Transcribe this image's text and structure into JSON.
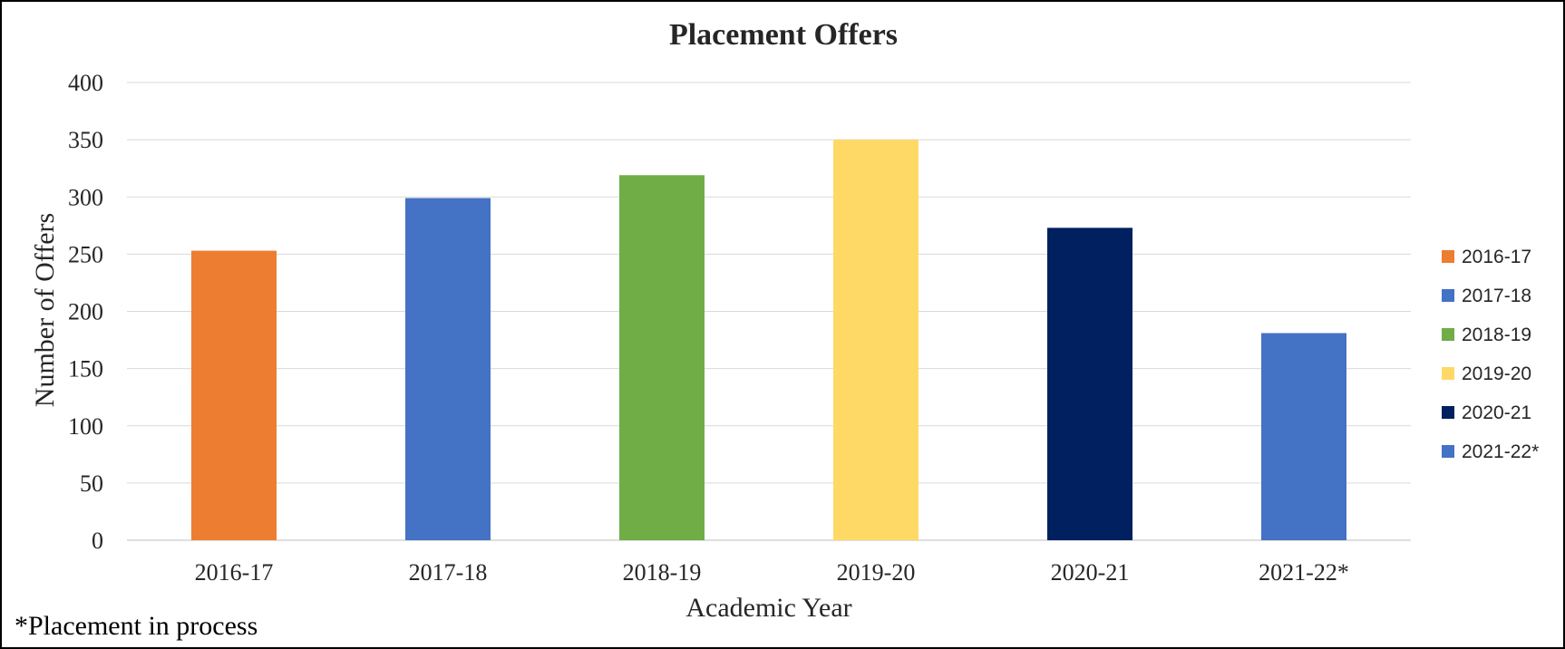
{
  "chart_data": {
    "type": "bar",
    "title": "Placement Offers",
    "xlabel": "Academic Year",
    "ylabel": "Number of Offers",
    "categories": [
      "2016-17",
      "2017-18",
      "2018-19",
      "2019-20",
      "2020-21",
      "2021-22*"
    ],
    "values": [
      253,
      299,
      319,
      350,
      273,
      181
    ],
    "colors": [
      "#ED7D31",
      "#4472C4",
      "#70AD47",
      "#FFD966",
      "#002060",
      "#4472C4"
    ],
    "ylim": [
      0,
      400
    ],
    "yticks": [
      "0",
      "50",
      "100",
      "150",
      "200",
      "250",
      "300",
      "350",
      "400"
    ],
    "grid": true,
    "legend": {
      "position": "right",
      "entries": [
        "2016-17",
        "2017-18",
        "2018-19",
        "2019-20",
        "2020-21",
        "2021-22*"
      ]
    },
    "footnote": "*Placement in process"
  }
}
